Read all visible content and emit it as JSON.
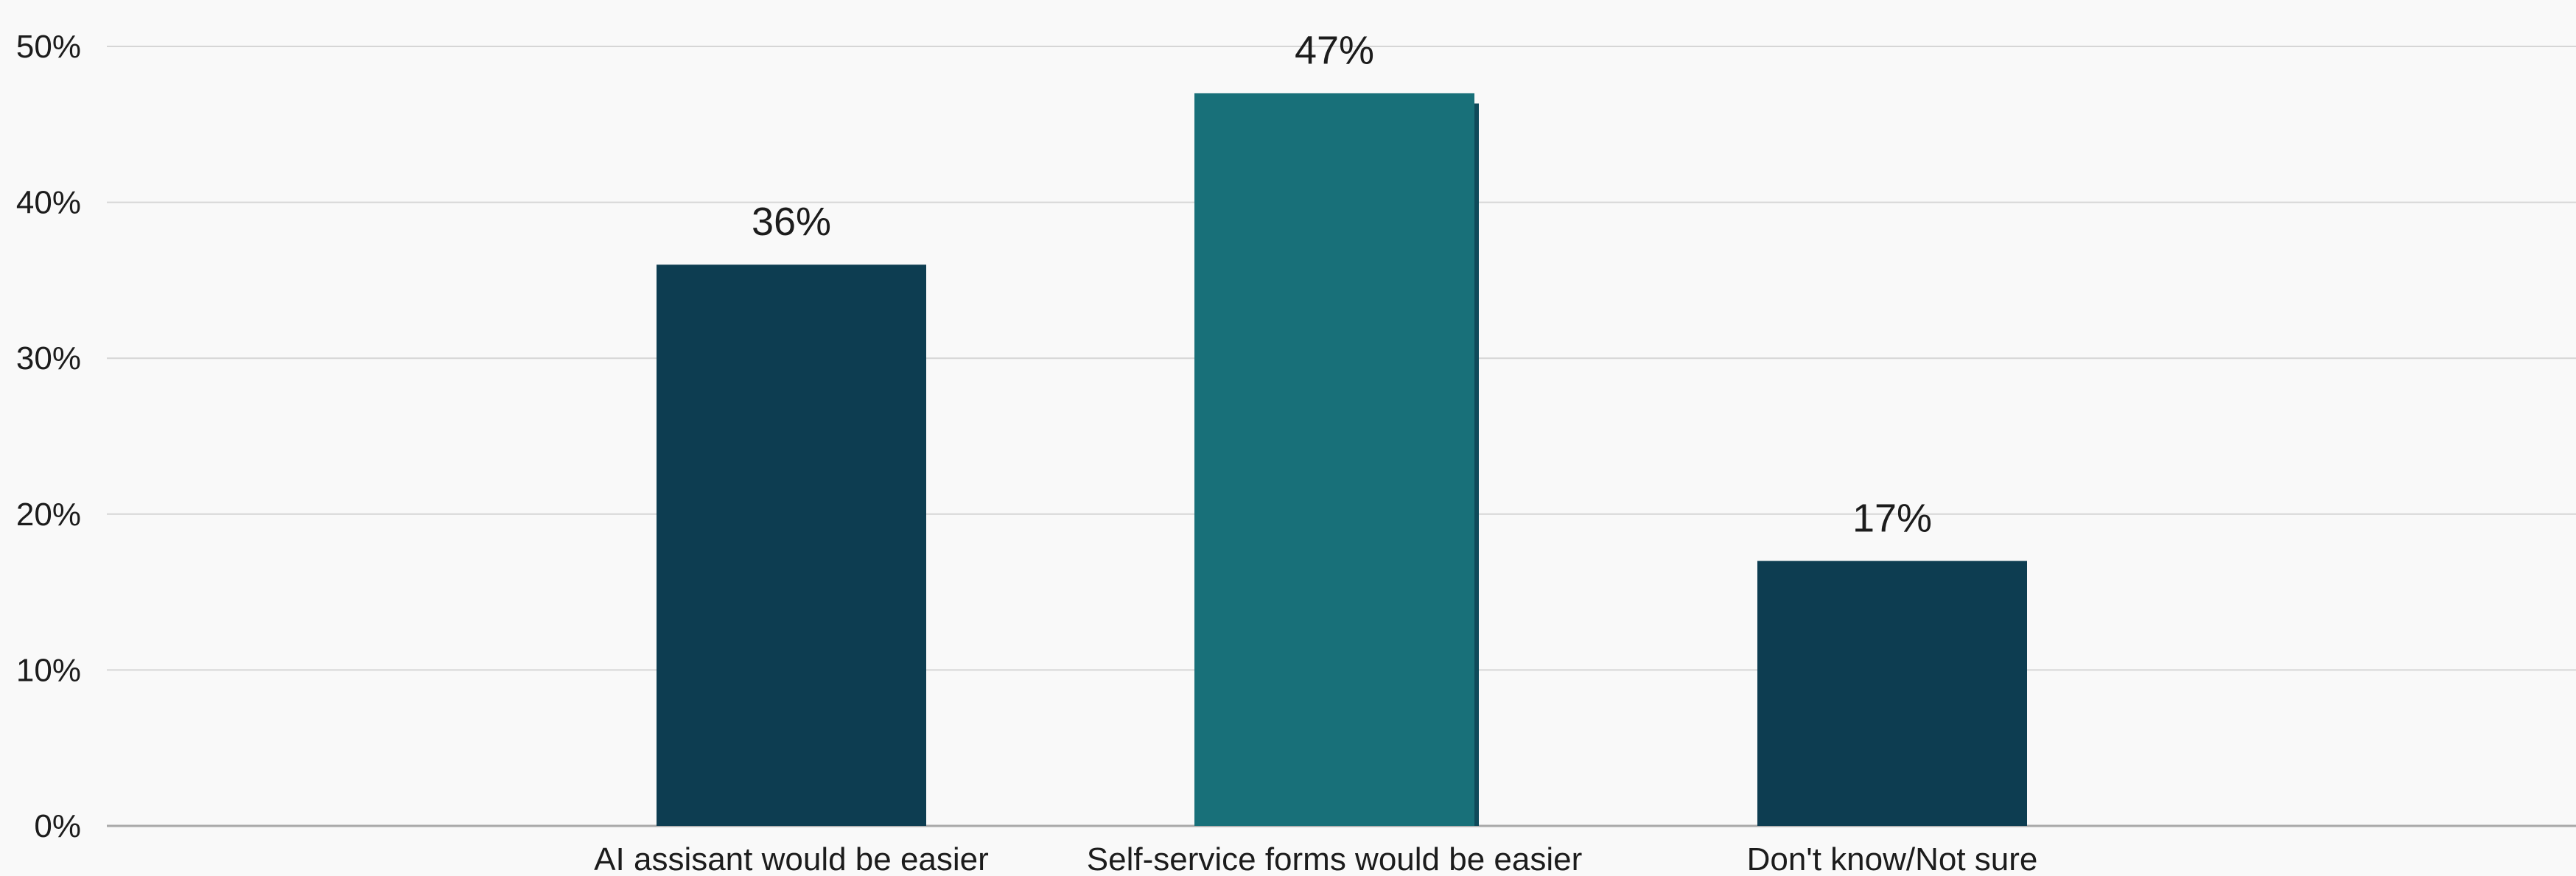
{
  "chart_data": {
    "type": "bar",
    "title": "",
    "xlabel": "",
    "ylabel": "",
    "categories": [
      "AI assisant would be easier",
      "Self-service forms would be easier",
      "Don't know/Not sure"
    ],
    "values": [
      36,
      47,
      17
    ],
    "data_labels": [
      "36%",
      "47%",
      "17%"
    ],
    "ylim": [
      0,
      50
    ],
    "yticks": [
      0,
      10,
      20,
      30,
      40,
      50
    ],
    "ytick_labels": [
      "0%",
      "10%",
      "20%",
      "30%",
      "40%",
      "50%"
    ],
    "grid": true,
    "legend": "none",
    "bar_colors": [
      "#0d3d51",
      "#187079",
      "#0d3d51"
    ],
    "highlighted_category": "Self-service forms would be easier"
  },
  "colors": {
    "background": "#f9f9f9",
    "gridline": "#d6d6d6",
    "axis": "#a8a8a8",
    "text": "#1c1c1c",
    "bar_dark": "#0d3d51",
    "bar_highlight": "#187079"
  }
}
